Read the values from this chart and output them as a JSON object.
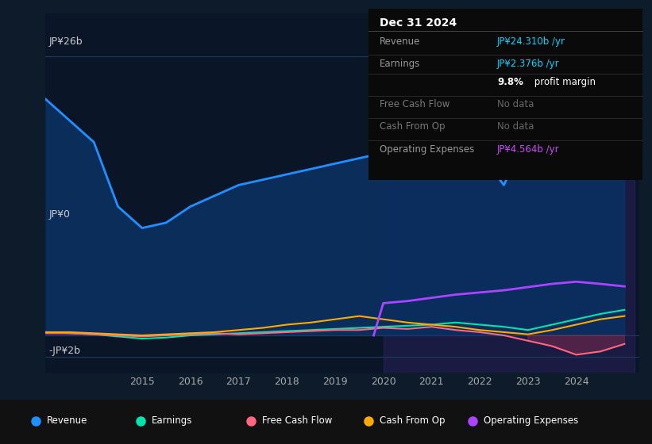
{
  "bg_color": "#0d1b2a",
  "plot_bg": "#0a1628",
  "grid_color": "#1e3a5f",
  "revenue_color": "#1e90ff",
  "earnings_color": "#00e5b0",
  "fcf_color": "#ff6680",
  "cashfromop_color": "#ffaa00",
  "opex_color": "#aa44ff",
  "revenue_fill": "#0a3060",
  "y_labels": [
    "JP¥26b",
    "JP¥0",
    "-JP¥2b"
  ],
  "x_ticks": [
    2015,
    2016,
    2017,
    2018,
    2019,
    2020,
    2021,
    2022,
    2023,
    2024
  ],
  "legend": [
    {
      "label": "Revenue",
      "color": "#1e90ff"
    },
    {
      "label": "Earnings",
      "color": "#00e5b0"
    },
    {
      "label": "Free Cash Flow",
      "color": "#ff6680"
    },
    {
      "label": "Cash From Op",
      "color": "#ffaa00"
    },
    {
      "label": "Operating Expenses",
      "color": "#aa44ff"
    }
  ]
}
